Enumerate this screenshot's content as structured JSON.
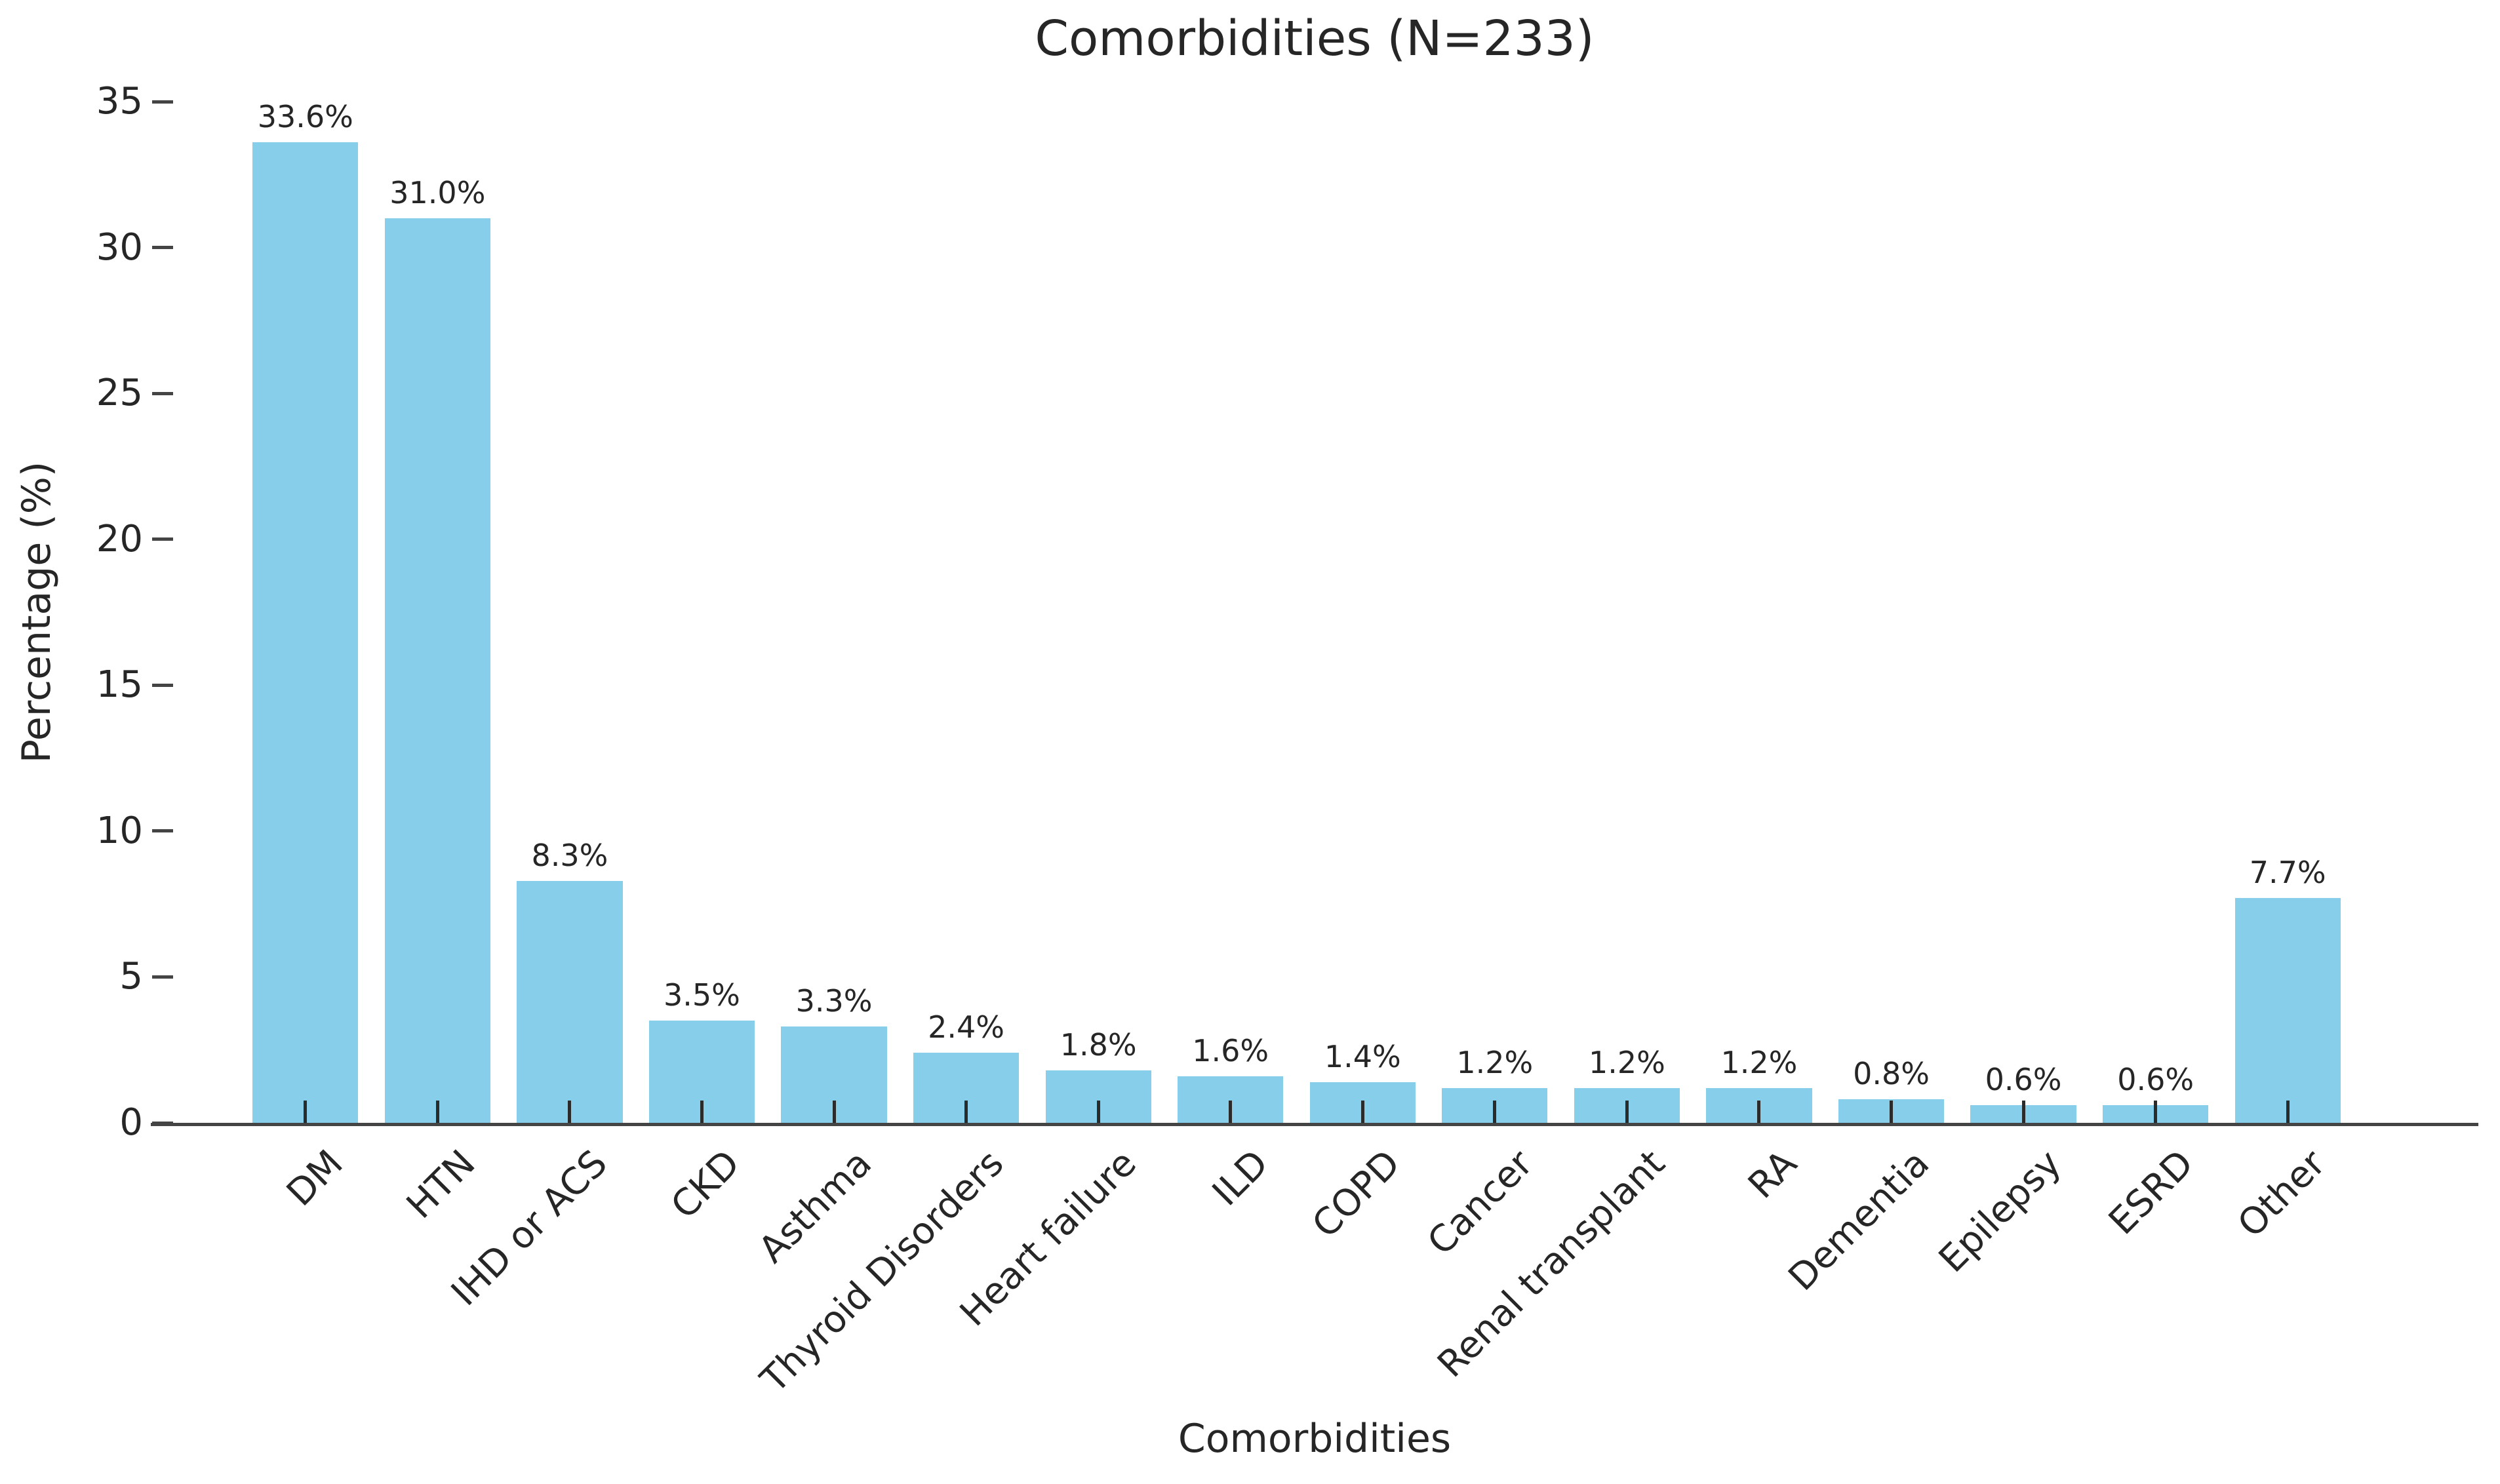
{
  "chart_data": {
    "type": "bar",
    "title": "Comorbidities (N=233)",
    "xlabel": "Comorbidities",
    "ylabel": "Percentage (%)",
    "categories": [
      "DM",
      "HTN",
      "IHD or ACS",
      "CKD",
      "Asthma",
      "Thyroid Disorders",
      "Heart failure",
      "ILD",
      "COPD",
      "Cancer",
      "Renal transplant",
      "RA",
      "Dementia",
      "Epilepsy",
      "ESRD",
      "Other"
    ],
    "values": [
      33.6,
      31.0,
      8.3,
      3.5,
      3.3,
      2.4,
      1.8,
      1.6,
      1.4,
      1.2,
      1.2,
      1.2,
      0.8,
      0.6,
      0.6,
      7.7
    ],
    "value_labels": [
      "33.6%",
      "31.0%",
      "8.3%",
      "3.5%",
      "3.3%",
      "2.4%",
      "1.8%",
      "1.6%",
      "1.4%",
      "1.2%",
      "1.2%",
      "1.2%",
      "0.8%",
      "0.6%",
      "0.6%",
      "7.7%"
    ],
    "ylim": [
      0,
      35
    ],
    "yticks": [
      0,
      5,
      10,
      15,
      20,
      25,
      30,
      35
    ],
    "grid": false,
    "legend_position": "none",
    "bar_color": "#87CEEB",
    "axis_color": "#444444",
    "tick_color": "#2b2b2b",
    "text_color": "#262626",
    "background_color": "#ffffff"
  }
}
